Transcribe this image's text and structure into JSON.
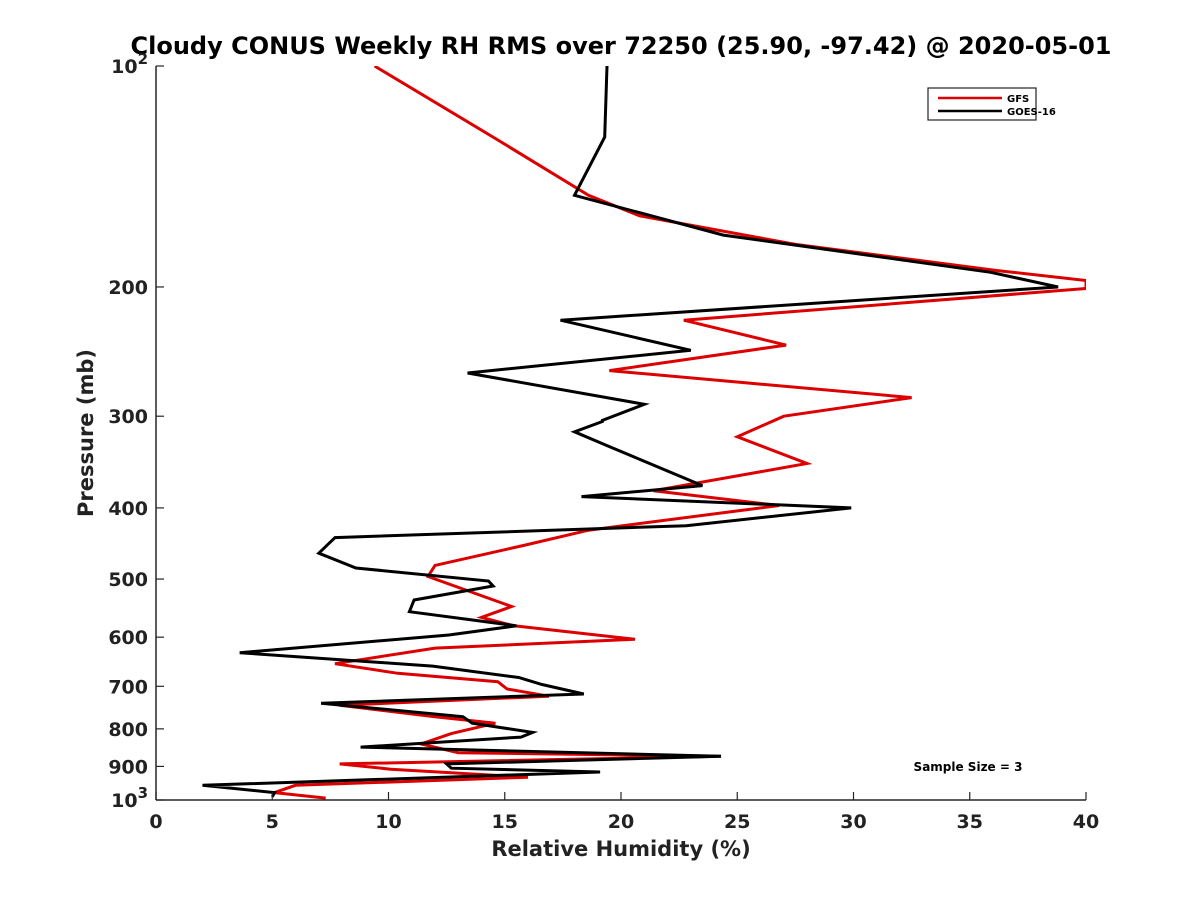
{
  "chart_data": {
    "type": "line",
    "title": "Cloudy CONUS Weekly RH RMS over 72250 (25.90, -97.42) @ 2020-05-01",
    "xlabel": "Relative Humidity (%)",
    "ylabel": "Pressure (mb)",
    "xlim": [
      0,
      40
    ],
    "ylim": [
      100,
      1000
    ],
    "yscale": "log",
    "y_reversed": true,
    "grid": false,
    "legend_position": "top-right",
    "xticks": [
      0,
      5,
      10,
      15,
      20,
      25,
      30,
      35,
      40
    ],
    "xtick_labels": [
      "0",
      "5",
      "10",
      "15",
      "20",
      "25",
      "30",
      "35",
      "40"
    ],
    "yticks": [
      100,
      200,
      300,
      400,
      500,
      600,
      700,
      800,
      900,
      1000
    ],
    "ytick_labels": [
      "10^2",
      "200",
      "300",
      "400",
      "500",
      "600",
      "700",
      "800",
      "900",
      "10^3"
    ],
    "annotation": "Sample Size = 3",
    "series": [
      {
        "name": "GFS",
        "color": "#dd0000",
        "points": [
          [
            9.4,
            100
          ],
          [
            14.5,
            125
          ],
          [
            18.6,
            150
          ],
          [
            20.8,
            160
          ],
          [
            27.5,
            175
          ],
          [
            36.2,
            190
          ],
          [
            40.0,
            196
          ],
          [
            40.0,
            201
          ],
          [
            22.7,
            222
          ],
          [
            27.1,
            240
          ],
          [
            19.5,
            260
          ],
          [
            32.5,
            283
          ],
          [
            27.0,
            300
          ],
          [
            25.0,
            320
          ],
          [
            28.0,
            348
          ],
          [
            21.4,
            379
          ],
          [
            26.8,
            397
          ],
          [
            18.6,
            429
          ],
          [
            15.8,
            450
          ],
          [
            12.0,
            479
          ],
          [
            11.7,
            496
          ],
          [
            15.3,
            545
          ],
          [
            14.0,
            564
          ],
          [
            15.4,
            579
          ],
          [
            20.6,
            604
          ],
          [
            12.0,
            621
          ],
          [
            7.7,
            652
          ],
          [
            10.4,
            672
          ],
          [
            14.7,
            690
          ],
          [
            15.1,
            706
          ],
          [
            16.9,
            722
          ],
          [
            7.9,
            743
          ],
          [
            12.0,
            770
          ],
          [
            14.6,
            786
          ],
          [
            12.7,
            812
          ],
          [
            11.4,
            839
          ],
          [
            13.0,
            862
          ],
          [
            24.3,
            872
          ],
          [
            7.9,
            893
          ],
          [
            10.1,
            908
          ],
          [
            16.0,
            931
          ],
          [
            6.0,
            955
          ],
          [
            5.1,
            977
          ],
          [
            7.3,
            994
          ]
        ]
      },
      {
        "name": "GOES-16",
        "color": "#000000",
        "points": [
          [
            19.4,
            100
          ],
          [
            19.3,
            125
          ],
          [
            18.0,
            150
          ],
          [
            24.4,
            170
          ],
          [
            35.9,
            191
          ],
          [
            38.8,
            200
          ],
          [
            17.4,
            222
          ],
          [
            23.0,
            244
          ],
          [
            13.4,
            262
          ],
          [
            21.0,
            289
          ],
          [
            19.2,
            304
          ],
          [
            19.2,
            305
          ],
          [
            18.0,
            315
          ],
          [
            19.5,
            330
          ],
          [
            23.5,
            373
          ],
          [
            18.3,
            386
          ],
          [
            29.9,
            400
          ],
          [
            22.8,
            423
          ],
          [
            7.7,
            439
          ],
          [
            7.0,
            461
          ],
          [
            8.6,
            483
          ],
          [
            14.3,
            503
          ],
          [
            14.5,
            511
          ],
          [
            11.1,
            534
          ],
          [
            10.9,
            554
          ],
          [
            15.5,
            579
          ],
          [
            12.6,
            596
          ],
          [
            3.6,
            630
          ],
          [
            11.9,
            657
          ],
          [
            15.6,
            681
          ],
          [
            16.6,
            696
          ],
          [
            18.4,
            717
          ],
          [
            7.1,
            738
          ],
          [
            13.2,
            770
          ],
          [
            13.6,
            786
          ],
          [
            16.2,
            809
          ],
          [
            15.7,
            821
          ],
          [
            8.8,
            847
          ],
          [
            24.3,
            872
          ],
          [
            12.5,
            893
          ],
          [
            12.7,
            905
          ],
          [
            19.1,
            916
          ],
          [
            2.0,
            955
          ],
          [
            5.1,
            977
          ],
          [
            5.0,
            990
          ]
        ]
      }
    ]
  }
}
